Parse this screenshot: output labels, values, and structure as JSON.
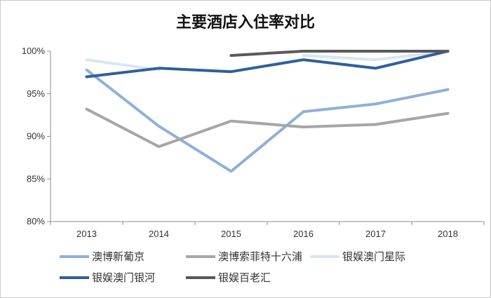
{
  "chart_data": {
    "type": "line",
    "title": "主要酒店入住率对比",
    "xlabel": "",
    "ylabel": "",
    "x": [
      "2013",
      "2014",
      "2015",
      "2016",
      "2017",
      "2018"
    ],
    "ylim": [
      0.8,
      1.0
    ],
    "yticks": [
      0.8,
      0.85,
      0.9,
      0.95,
      1.0
    ],
    "ytick_labels": [
      "80%",
      "85%",
      "90%",
      "95%",
      "100%"
    ],
    "grid": false,
    "legend_position": "bottom",
    "series": [
      {
        "name": "澳博新葡京",
        "color": "#8fb0db",
        "values": [
          0.978,
          0.912,
          0.859,
          0.929,
          0.938,
          0.955
        ]
      },
      {
        "name": "澳博索菲特十六浦",
        "color": "#a6a6a6",
        "values": [
          0.932,
          0.888,
          0.918,
          0.911,
          0.914,
          0.927
        ]
      },
      {
        "name": "银娱澳门星际",
        "color": "#d9e6f3",
        "values": [
          0.99,
          0.978,
          null,
          0.995,
          0.99,
          1.0
        ]
      },
      {
        "name": "银娱澳门银河",
        "color": "#2f5f9e",
        "values": [
          0.97,
          0.98,
          0.976,
          0.99,
          0.98,
          1.0
        ]
      },
      {
        "name": "银娱百老汇",
        "color": "#595959",
        "values": [
          null,
          null,
          0.995,
          1.0,
          1.0,
          1.0
        ]
      }
    ]
  }
}
